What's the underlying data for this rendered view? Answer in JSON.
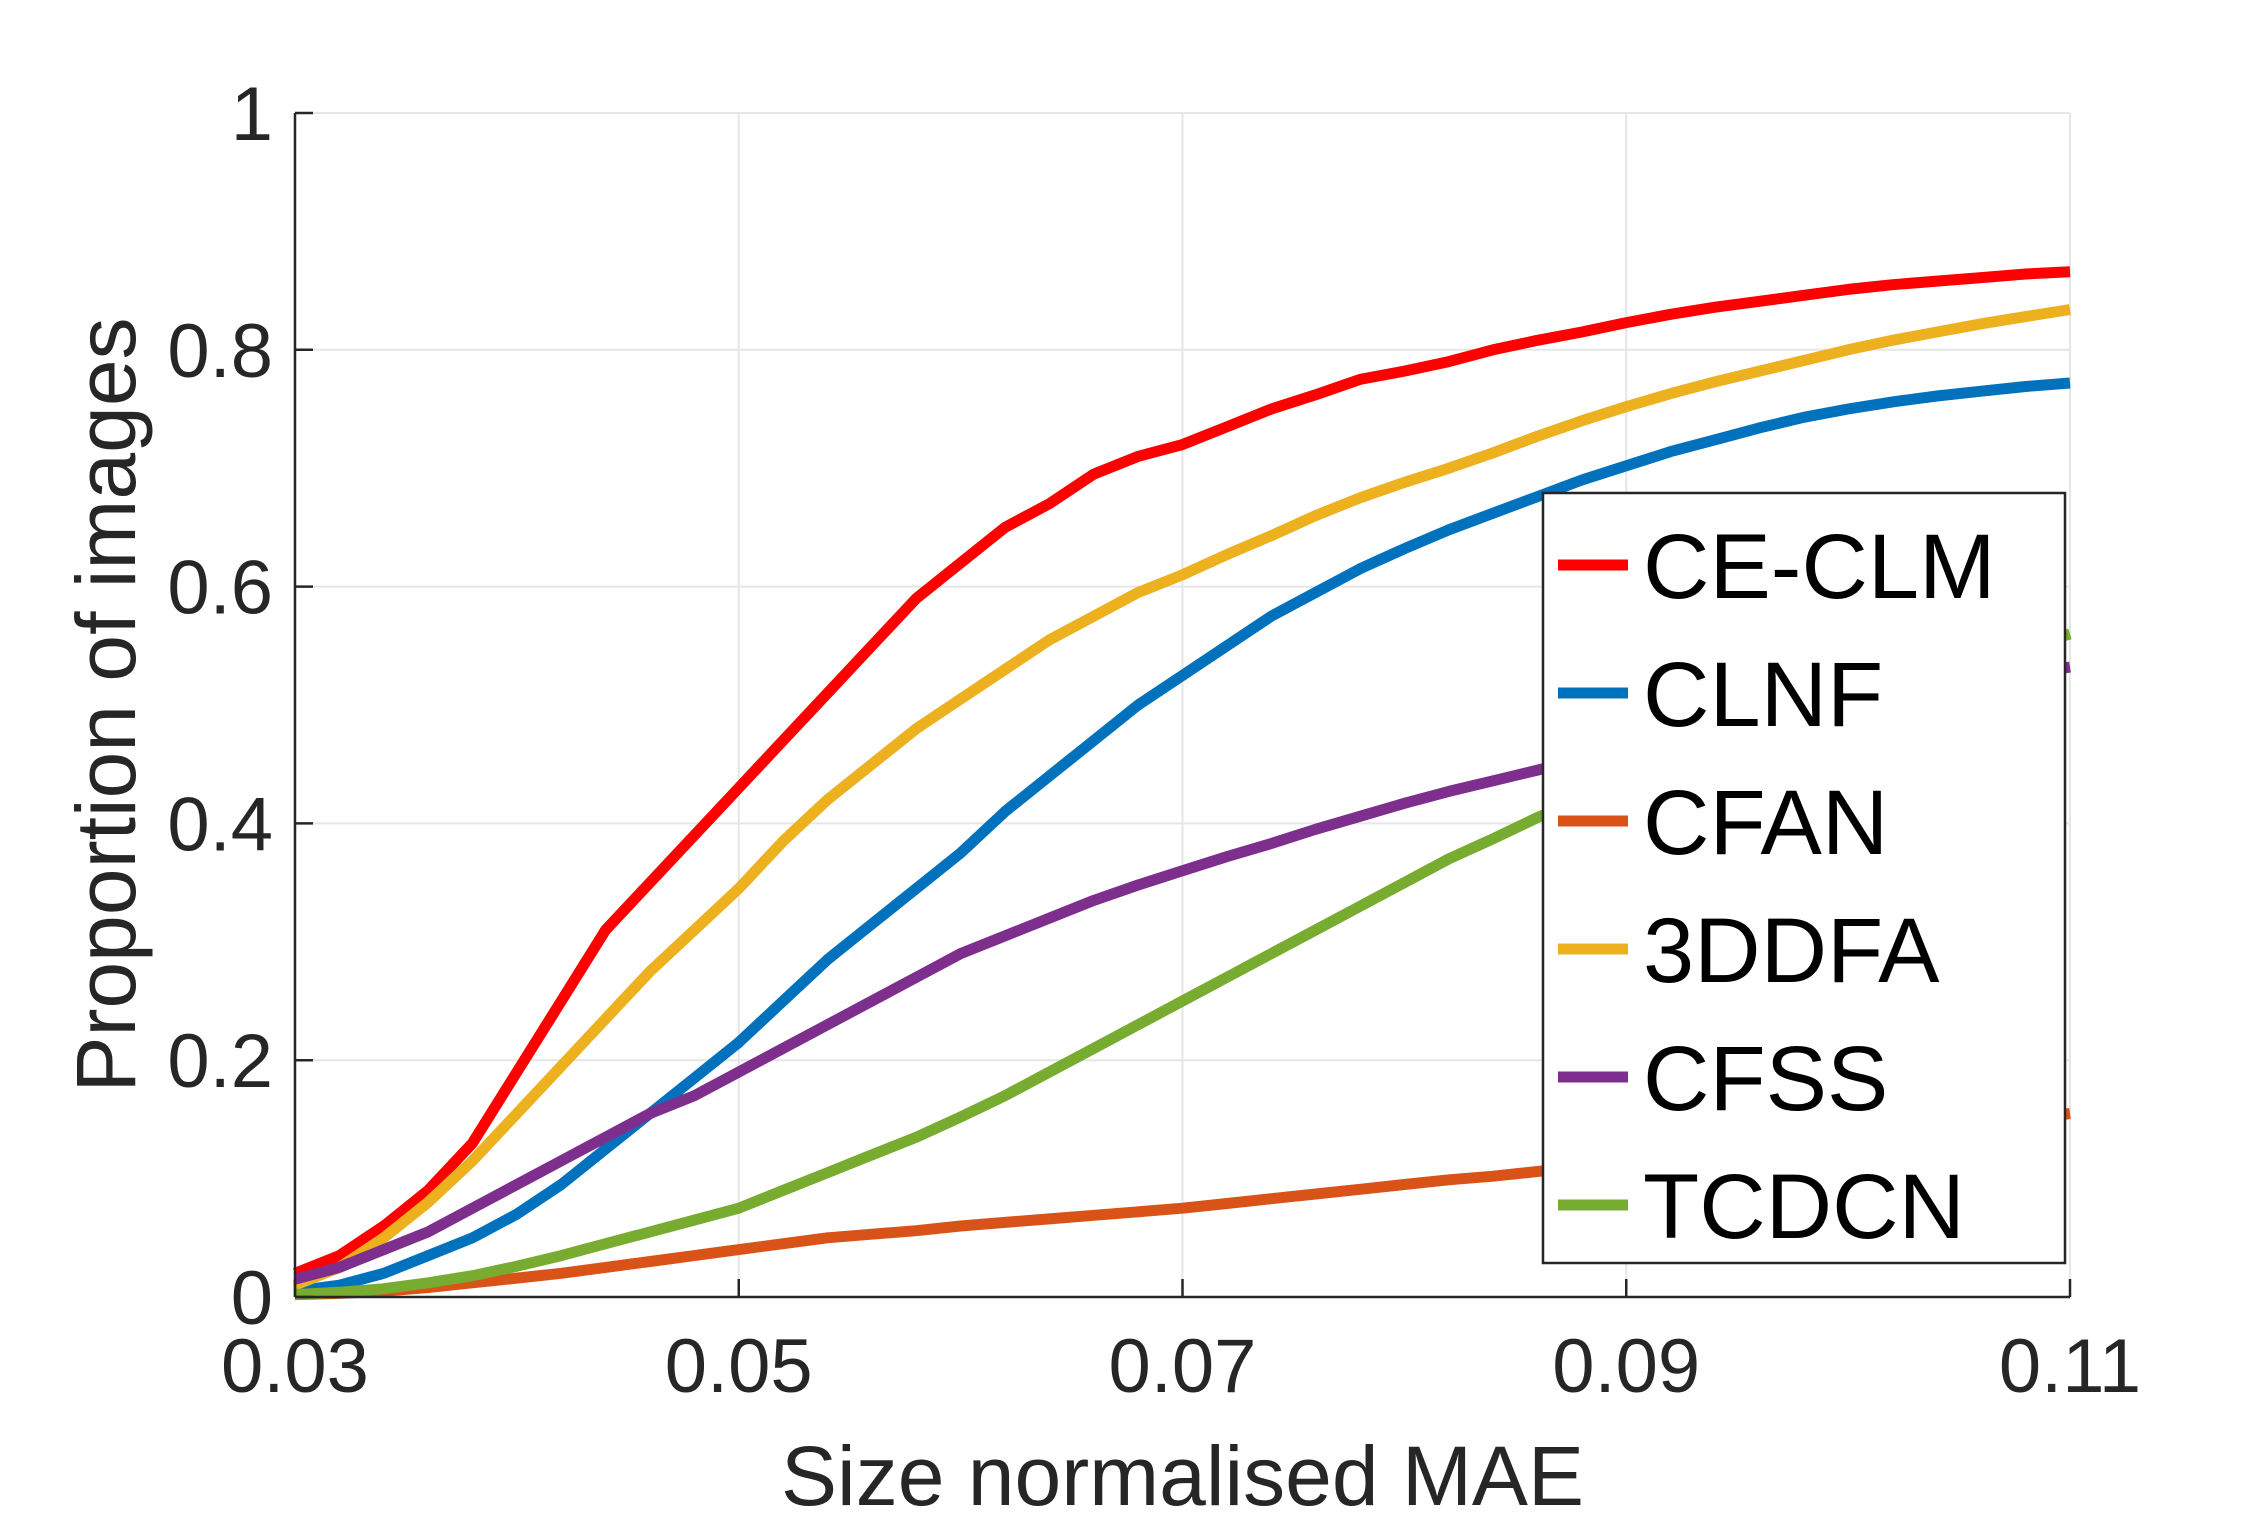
{
  "chart_data": {
    "type": "line",
    "xlabel": "Size normalised MAE",
    "ylabel": "Proportion of images",
    "xlim": [
      0.03,
      0.11
    ],
    "ylim": [
      0,
      1
    ],
    "xticks": [
      0.03,
      0.05,
      0.07,
      0.09,
      0.11
    ],
    "xtick_labels": [
      "0.03",
      "0.05",
      "0.07",
      "0.09",
      "0.11"
    ],
    "yticks": [
      0,
      0.2,
      0.4,
      0.6,
      0.8,
      1
    ],
    "ytick_labels": [
      "0",
      "0.2",
      "0.4",
      "0.6",
      "0.8",
      "1"
    ],
    "grid": true,
    "legend_position": "bottom-right",
    "series": [
      {
        "name": "CE-CLM",
        "color": "#ff0000",
        "x": [
          0.03,
          0.032,
          0.034,
          0.036,
          0.038,
          0.04,
          0.042,
          0.044,
          0.046,
          0.048,
          0.05,
          0.052,
          0.054,
          0.056,
          0.058,
          0.06,
          0.062,
          0.064,
          0.066,
          0.068,
          0.07,
          0.072,
          0.074,
          0.076,
          0.078,
          0.08,
          0.082,
          0.084,
          0.086,
          0.088,
          0.09,
          0.092,
          0.094,
          0.096,
          0.098,
          0.1,
          0.102,
          0.104,
          0.106,
          0.108,
          0.11
        ],
        "y": [
          0.02,
          0.035,
          0.06,
          0.09,
          0.13,
          0.19,
          0.25,
          0.31,
          0.35,
          0.39,
          0.43,
          0.47,
          0.51,
          0.55,
          0.59,
          0.62,
          0.65,
          0.67,
          0.695,
          0.71,
          0.72,
          0.735,
          0.75,
          0.762,
          0.775,
          0.782,
          0.79,
          0.8,
          0.808,
          0.815,
          0.823,
          0.83,
          0.836,
          0.841,
          0.846,
          0.851,
          0.855,
          0.858,
          0.861,
          0.864,
          0.866
        ]
      },
      {
        "name": "CLNF",
        "color": "#0072bd",
        "x": [
          0.03,
          0.032,
          0.034,
          0.036,
          0.038,
          0.04,
          0.042,
          0.044,
          0.046,
          0.048,
          0.05,
          0.052,
          0.054,
          0.056,
          0.058,
          0.06,
          0.062,
          0.064,
          0.066,
          0.068,
          0.07,
          0.072,
          0.074,
          0.076,
          0.078,
          0.08,
          0.082,
          0.084,
          0.086,
          0.088,
          0.09,
          0.092,
          0.094,
          0.096,
          0.098,
          0.1,
          0.102,
          0.104,
          0.106,
          0.108,
          0.11
        ],
        "y": [
          0.005,
          0.01,
          0.02,
          0.035,
          0.05,
          0.07,
          0.095,
          0.125,
          0.155,
          0.185,
          0.215,
          0.25,
          0.285,
          0.315,
          0.345,
          0.375,
          0.41,
          0.44,
          0.47,
          0.5,
          0.525,
          0.55,
          0.575,
          0.595,
          0.615,
          0.632,
          0.648,
          0.662,
          0.676,
          0.69,
          0.702,
          0.714,
          0.724,
          0.734,
          0.743,
          0.75,
          0.756,
          0.761,
          0.765,
          0.769,
          0.772
        ]
      },
      {
        "name": "CFAN",
        "color": "#d95319",
        "x": [
          0.03,
          0.032,
          0.034,
          0.036,
          0.038,
          0.04,
          0.042,
          0.044,
          0.046,
          0.048,
          0.05,
          0.052,
          0.054,
          0.056,
          0.058,
          0.06,
          0.062,
          0.064,
          0.066,
          0.068,
          0.07,
          0.072,
          0.074,
          0.076,
          0.078,
          0.08,
          0.082,
          0.084,
          0.086,
          0.088,
          0.09,
          0.092,
          0.094,
          0.096,
          0.098,
          0.1,
          0.102,
          0.104,
          0.106,
          0.108,
          0.11
        ],
        "y": [
          0.002,
          0.003,
          0.005,
          0.008,
          0.012,
          0.016,
          0.02,
          0.025,
          0.03,
          0.035,
          0.04,
          0.045,
          0.05,
          0.053,
          0.056,
          0.06,
          0.063,
          0.066,
          0.069,
          0.072,
          0.075,
          0.079,
          0.083,
          0.087,
          0.091,
          0.095,
          0.099,
          0.102,
          0.106,
          0.11,
          0.114,
          0.118,
          0.122,
          0.126,
          0.13,
          0.134,
          0.138,
          0.142,
          0.146,
          0.15,
          0.155
        ]
      },
      {
        "name": "3DDFA",
        "color": "#edb120",
        "x": [
          0.03,
          0.032,
          0.034,
          0.036,
          0.038,
          0.04,
          0.042,
          0.044,
          0.046,
          0.048,
          0.05,
          0.052,
          0.054,
          0.056,
          0.058,
          0.06,
          0.062,
          0.064,
          0.066,
          0.068,
          0.07,
          0.072,
          0.074,
          0.076,
          0.078,
          0.08,
          0.082,
          0.084,
          0.086,
          0.088,
          0.09,
          0.092,
          0.094,
          0.096,
          0.098,
          0.1,
          0.102,
          0.104,
          0.106,
          0.108,
          0.11
        ],
        "y": [
          0.01,
          0.025,
          0.05,
          0.08,
          0.115,
          0.155,
          0.195,
          0.235,
          0.275,
          0.31,
          0.345,
          0.385,
          0.42,
          0.45,
          0.48,
          0.505,
          0.53,
          0.555,
          0.575,
          0.595,
          0.61,
          0.627,
          0.643,
          0.66,
          0.675,
          0.688,
          0.7,
          0.713,
          0.727,
          0.74,
          0.752,
          0.763,
          0.773,
          0.782,
          0.791,
          0.8,
          0.808,
          0.815,
          0.822,
          0.828,
          0.834
        ]
      },
      {
        "name": "CFSS",
        "color": "#7e2f8e",
        "x": [
          0.03,
          0.032,
          0.034,
          0.036,
          0.038,
          0.04,
          0.042,
          0.044,
          0.046,
          0.048,
          0.05,
          0.052,
          0.054,
          0.056,
          0.058,
          0.06,
          0.062,
          0.064,
          0.066,
          0.068,
          0.07,
          0.072,
          0.074,
          0.076,
          0.078,
          0.08,
          0.082,
          0.084,
          0.086,
          0.088,
          0.09,
          0.092,
          0.094,
          0.096,
          0.098,
          0.1,
          0.102,
          0.104,
          0.106,
          0.108,
          0.11
        ],
        "y": [
          0.015,
          0.025,
          0.04,
          0.055,
          0.075,
          0.095,
          0.115,
          0.135,
          0.155,
          0.17,
          0.19,
          0.21,
          0.23,
          0.25,
          0.27,
          0.29,
          0.305,
          0.32,
          0.335,
          0.348,
          0.36,
          0.372,
          0.383,
          0.395,
          0.406,
          0.417,
          0.427,
          0.436,
          0.445,
          0.454,
          0.462,
          0.47,
          0.478,
          0.486,
          0.494,
          0.501,
          0.508,
          0.514,
          0.52,
          0.526,
          0.532
        ]
      },
      {
        "name": "TCDCN",
        "color": "#77ac30",
        "x": [
          0.03,
          0.032,
          0.034,
          0.036,
          0.038,
          0.04,
          0.042,
          0.044,
          0.046,
          0.048,
          0.05,
          0.052,
          0.054,
          0.056,
          0.058,
          0.06,
          0.062,
          0.064,
          0.066,
          0.068,
          0.07,
          0.072,
          0.074,
          0.076,
          0.078,
          0.08,
          0.082,
          0.084,
          0.086,
          0.088,
          0.09,
          0.092,
          0.094,
          0.096,
          0.098,
          0.1,
          0.102,
          0.104,
          0.106,
          0.108,
          0.11
        ],
        "y": [
          0.002,
          0.004,
          0.007,
          0.012,
          0.018,
          0.026,
          0.035,
          0.045,
          0.055,
          0.065,
          0.075,
          0.09,
          0.105,
          0.12,
          0.135,
          0.152,
          0.17,
          0.19,
          0.21,
          0.23,
          0.25,
          0.27,
          0.29,
          0.31,
          0.33,
          0.35,
          0.37,
          0.387,
          0.405,
          0.42,
          0.435,
          0.45,
          0.465,
          0.478,
          0.491,
          0.503,
          0.515,
          0.527,
          0.538,
          0.549,
          0.56
        ]
      }
    ]
  }
}
